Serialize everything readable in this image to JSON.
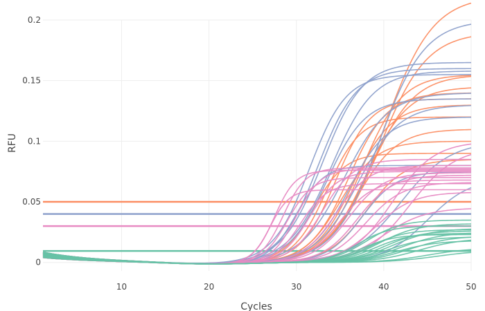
{
  "chart_data": {
    "type": "line",
    "title": "",
    "xlabel": "Cycles",
    "ylabel": "RFU",
    "xlim": [
      1,
      50
    ],
    "ylim": [
      -0.007,
      0.2
    ],
    "x_ticks": [
      10,
      20,
      30,
      40,
      50
    ],
    "x_tick_labels": [
      "10",
      "20",
      "30",
      "40",
      "50"
    ],
    "y_ticks": [
      0,
      0.05,
      0.1,
      0.15,
      0.2
    ],
    "y_tick_labels": [
      "0",
      "0.05",
      "0.1",
      "0.15",
      "0.2"
    ],
    "grid": true,
    "legend": "none",
    "colors": {
      "orange": "#fc8d62",
      "blue": "#8da0cb",
      "pink": "#e78ac3",
      "green": "#66c2a5"
    },
    "thresholds": [
      {
        "color": "orange",
        "y": 0.05
      },
      {
        "color": "blue",
        "y": 0.04
      },
      {
        "color": "pink",
        "y": 0.03
      },
      {
        "color": "green",
        "y": 0.0095
      }
    ],
    "amplification_model": "baseline + plateau / (1 + exp(-(cycle - midpoint) / slope))",
    "curves": [
      {
        "color": "orange",
        "plateau": 0.22,
        "midpoint": 40.0,
        "slope": 2.8,
        "baseline": 0.0
      },
      {
        "color": "orange",
        "plateau": 0.19,
        "midpoint": 39.5,
        "slope": 2.7,
        "baseline": 0.0
      },
      {
        "color": "orange",
        "plateau": 0.155,
        "midpoint": 37.5,
        "slope": 2.3,
        "baseline": 0.0
      },
      {
        "color": "orange",
        "plateau": 0.155,
        "midpoint": 38.5,
        "slope": 2.5,
        "baseline": 0.0
      },
      {
        "color": "orange",
        "plateau": 0.145,
        "midpoint": 38.0,
        "slope": 2.4,
        "baseline": 0.0
      },
      {
        "color": "orange",
        "plateau": 0.14,
        "midpoint": 36.0,
        "slope": 2.2,
        "baseline": 0.0
      },
      {
        "color": "orange",
        "plateau": 0.135,
        "midpoint": 34.5,
        "slope": 2.0,
        "baseline": 0.0
      },
      {
        "color": "orange",
        "plateau": 0.13,
        "midpoint": 36.5,
        "slope": 2.2,
        "baseline": 0.0
      },
      {
        "color": "orange",
        "plateau": 0.12,
        "midpoint": 33.5,
        "slope": 1.9,
        "baseline": 0.0
      },
      {
        "color": "orange",
        "plateau": 0.11,
        "midpoint": 37.0,
        "slope": 2.3,
        "baseline": 0.0
      },
      {
        "color": "orange",
        "plateau": 0.1,
        "midpoint": 35.0,
        "slope": 2.1,
        "baseline": 0.0
      },
      {
        "color": "orange",
        "plateau": 0.09,
        "midpoint": 32.0,
        "slope": 1.8,
        "baseline": 0.0
      },
      {
        "color": "orange",
        "plateau": 0.085,
        "midpoint": 38.0,
        "slope": 2.2,
        "baseline": 0.0
      },
      {
        "color": "blue",
        "plateau": 0.2,
        "midpoint": 39.5,
        "slope": 2.6,
        "baseline": 0.0
      },
      {
        "color": "blue",
        "plateau": 0.165,
        "midpoint": 33.0,
        "slope": 2.3,
        "baseline": 0.0
      },
      {
        "color": "blue",
        "plateau": 0.16,
        "midpoint": 32.5,
        "slope": 2.2,
        "baseline": 0.0
      },
      {
        "color": "blue",
        "plateau": 0.158,
        "midpoint": 34.0,
        "slope": 2.4,
        "baseline": 0.0
      },
      {
        "color": "blue",
        "plateau": 0.155,
        "midpoint": 31.5,
        "slope": 2.1,
        "baseline": 0.0
      },
      {
        "color": "blue",
        "plateau": 0.14,
        "midpoint": 35.5,
        "slope": 2.5,
        "baseline": 0.0
      },
      {
        "color": "blue",
        "plateau": 0.135,
        "midpoint": 33.5,
        "slope": 2.2,
        "baseline": 0.0
      },
      {
        "color": "blue",
        "plateau": 0.13,
        "midpoint": 37.0,
        "slope": 2.4,
        "baseline": 0.0
      },
      {
        "color": "blue",
        "plateau": 0.12,
        "midpoint": 36.0,
        "slope": 2.2,
        "baseline": 0.0
      },
      {
        "color": "blue",
        "plateau": 0.1,
        "midpoint": 42.0,
        "slope": 2.8,
        "baseline": 0.0
      },
      {
        "color": "blue",
        "plateau": 0.08,
        "midpoint": 30.0,
        "slope": 1.6,
        "baseline": 0.0
      },
      {
        "color": "blue",
        "plateau": 0.075,
        "midpoint": 37.5,
        "slope": 2.0,
        "baseline": 0.0
      },
      {
        "color": "blue",
        "plateau": 0.07,
        "midpoint": 45.0,
        "slope": 2.5,
        "baseline": 0.0
      },
      {
        "color": "pink",
        "plateau": 0.1,
        "midpoint": 41.0,
        "slope": 2.4,
        "baseline": 0.0
      },
      {
        "color": "pink",
        "plateau": 0.095,
        "midpoint": 43.0,
        "slope": 2.6,
        "baseline": 0.0
      },
      {
        "color": "pink",
        "plateau": 0.085,
        "midpoint": 33.0,
        "slope": 1.8,
        "baseline": 0.0
      },
      {
        "color": "pink",
        "plateau": 0.08,
        "midpoint": 34.5,
        "slope": 1.9,
        "baseline": 0.0
      },
      {
        "color": "pink",
        "plateau": 0.078,
        "midpoint": 28.5,
        "slope": 1.3,
        "baseline": 0.0
      },
      {
        "color": "pink",
        "plateau": 0.077,
        "midpoint": 30.0,
        "slope": 1.4,
        "baseline": 0.0
      },
      {
        "color": "pink",
        "plateau": 0.076,
        "midpoint": 27.5,
        "slope": 1.2,
        "baseline": 0.0
      },
      {
        "color": "pink",
        "plateau": 0.075,
        "midpoint": 31.5,
        "slope": 1.6,
        "baseline": 0.0
      },
      {
        "color": "pink",
        "plateau": 0.074,
        "midpoint": 36.0,
        "slope": 2.0,
        "baseline": 0.0
      },
      {
        "color": "pink",
        "plateau": 0.072,
        "midpoint": 37.0,
        "slope": 2.0,
        "baseline": 0.0
      },
      {
        "color": "pink",
        "plateau": 0.07,
        "midpoint": 29.0,
        "slope": 1.4,
        "baseline": 0.0
      },
      {
        "color": "pink",
        "plateau": 0.068,
        "midpoint": 35.0,
        "slope": 1.9,
        "baseline": 0.0
      },
      {
        "color": "pink",
        "plateau": 0.066,
        "midpoint": 38.0,
        "slope": 2.1,
        "baseline": 0.0
      },
      {
        "color": "pink",
        "plateau": 0.065,
        "midpoint": 30.5,
        "slope": 1.5,
        "baseline": 0.0
      },
      {
        "color": "pink",
        "plateau": 0.06,
        "midpoint": 27.0,
        "slope": 1.1,
        "baseline": 0.0
      },
      {
        "color": "pink",
        "plateau": 0.058,
        "midpoint": 39.0,
        "slope": 2.2,
        "baseline": 0.0
      },
      {
        "color": "pink",
        "plateau": 0.045,
        "midpoint": 40.0,
        "slope": 2.4,
        "baseline": 0.0
      },
      {
        "color": "green",
        "plateau": 0.035,
        "midpoint": 38.0,
        "slope": 2.0,
        "baseline": 0.0
      },
      {
        "color": "green",
        "plateau": 0.032,
        "midpoint": 39.5,
        "slope": 2.2,
        "baseline": 0.0
      },
      {
        "color": "green",
        "plateau": 0.03,
        "midpoint": 37.0,
        "slope": 1.8,
        "baseline": 0.0
      },
      {
        "color": "green",
        "plateau": 0.028,
        "midpoint": 41.0,
        "slope": 2.3,
        "baseline": 0.0
      },
      {
        "color": "green",
        "plateau": 0.027,
        "midpoint": 38.5,
        "slope": 2.0,
        "baseline": 0.0
      },
      {
        "color": "green",
        "plateau": 0.026,
        "midpoint": 40.0,
        "slope": 2.1,
        "baseline": 0.0
      },
      {
        "color": "green",
        "plateau": 0.025,
        "midpoint": 42.0,
        "slope": 2.4,
        "baseline": 0.0
      },
      {
        "color": "green",
        "plateau": 0.024,
        "midpoint": 39.0,
        "slope": 2.0,
        "baseline": 0.0
      },
      {
        "color": "green",
        "plateau": 0.023,
        "midpoint": 37.5,
        "slope": 1.9,
        "baseline": 0.0
      },
      {
        "color": "green",
        "plateau": 0.022,
        "midpoint": 43.0,
        "slope": 2.4,
        "baseline": 0.0
      },
      {
        "color": "green",
        "plateau": 0.021,
        "midpoint": 40.5,
        "slope": 2.2,
        "baseline": 0.0
      },
      {
        "color": "green",
        "plateau": 0.02,
        "midpoint": 44.0,
        "slope": 2.5,
        "baseline": 0.0
      },
      {
        "color": "green",
        "plateau": 0.018,
        "midpoint": 41.5,
        "slope": 2.3,
        "baseline": 0.0
      },
      {
        "color": "green",
        "plateau": 0.012,
        "midpoint": 45.0,
        "slope": 2.5,
        "baseline": 0.0
      },
      {
        "color": "green",
        "plateau": 0.01,
        "midpoint": 46.0,
        "slope": 2.6,
        "baseline": 0.0
      }
    ]
  }
}
